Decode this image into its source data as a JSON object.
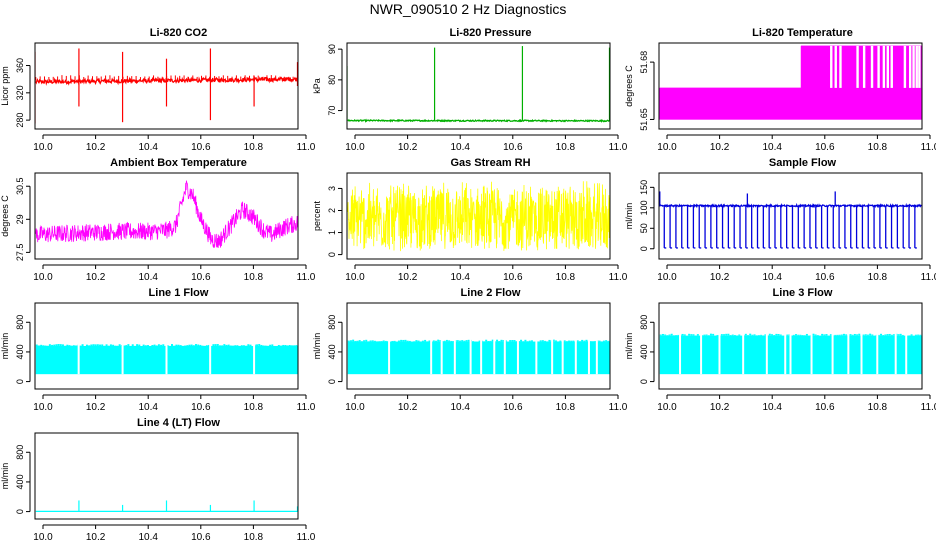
{
  "title": "NWR_090510  2 Hz Diagnostics",
  "colors": {
    "red": "#ff0000",
    "green": "#00b000",
    "magenta": "#ff00ff",
    "yellow": "#ffff00",
    "blue": "#0000dd",
    "cyan": "#00ffff"
  },
  "chart_data": [
    {
      "type": "line",
      "title": "Li-820 CO2",
      "ylabel": "Licor ppm",
      "color": "red",
      "xlim": [
        10.0,
        11.0
      ],
      "xticks": [
        10.0,
        10.2,
        10.4,
        10.6,
        10.8,
        11.0
      ],
      "ylim": [
        267,
        393
      ],
      "yticks": [
        280,
        320,
        360
      ],
      "series": [
        {
          "name": "CO2",
          "baseline": 338,
          "noise": 3,
          "trend": 4,
          "spikes": [
            {
              "x": 10.0,
              "lo": 275,
              "hi": 380
            },
            {
              "x": 10.167,
              "lo": 300,
              "hi": 385
            },
            {
              "x": 10.333,
              "lo": 277,
              "hi": 380
            },
            {
              "x": 10.5,
              "lo": 300,
              "hi": 370
            },
            {
              "x": 10.667,
              "lo": 280,
              "hi": 385
            },
            {
              "x": 10.833,
              "lo": 300,
              "hi": 345
            },
            {
              "x": 10.998,
              "lo": 330,
              "hi": 365
            }
          ]
        }
      ]
    },
    {
      "type": "line",
      "title": "Li-820 Pressure",
      "ylabel": "kPa",
      "color": "green",
      "xlim": [
        10.0,
        11.0
      ],
      "xticks": [
        10.0,
        10.2,
        10.4,
        10.6,
        10.8,
        11.0
      ],
      "ylim": [
        64,
        92
      ],
      "yticks": [
        70,
        80,
        90
      ],
      "series": [
        {
          "name": "Pressure",
          "baseline": 66.7,
          "noise": 0.2,
          "trend": -0.1,
          "spikes": [
            {
              "x": 10.0,
              "lo": 66.5,
              "hi": 84.5
            },
            {
              "x": 10.333,
              "lo": 66.5,
              "hi": 90.5
            },
            {
              "x": 10.667,
              "lo": 66.5,
              "hi": 91
            },
            {
              "x": 10.998,
              "lo": 66.5,
              "hi": 90.5
            }
          ]
        }
      ]
    },
    {
      "type": "area",
      "title": "Li-820 Temperature",
      "ylabel": "degrees C",
      "color": "magenta",
      "xlim": [
        10.0,
        11.0
      ],
      "xticks": [
        10.0,
        10.2,
        10.4,
        10.6,
        10.8,
        11.0
      ],
      "ylim": [
        51.645,
        51.69
      ],
      "yticks": [
        51.65,
        51.68
      ],
      "series": [
        {
          "name": "Temperature",
          "low": 51.65,
          "mid": 51.6665,
          "high": 51.6885,
          "step_x": 10.54,
          "gaps": [
            10.655,
            10.672,
            10.69,
            10.755,
            10.78,
            10.81,
            10.835,
            10.855,
            10.87,
            10.885,
            10.935,
            10.955,
            10.968,
            10.98,
            10.99
          ]
        }
      ]
    },
    {
      "type": "line",
      "title": "Ambient Box Temperature",
      "ylabel": "degrees C",
      "color": "magenta",
      "xlim": [
        10.0,
        11.0
      ],
      "xticks": [
        10.0,
        10.2,
        10.4,
        10.6,
        10.8,
        11.0
      ],
      "ylim": [
        27.2,
        31.1
      ],
      "yticks": [
        27.5,
        29.0,
        30.5
      ],
      "series": [
        {
          "name": "Ambient",
          "x": [
            10.0,
            10.1,
            10.2,
            10.3,
            10.4,
            10.45,
            10.5,
            10.535,
            10.56,
            10.575,
            10.6,
            10.63,
            10.67,
            10.7,
            10.75,
            10.79,
            10.83,
            10.87,
            10.9,
            10.95,
            11.0
          ],
          "y": [
            28.3,
            28.35,
            28.4,
            28.45,
            28.45,
            28.45,
            28.5,
            28.7,
            29.8,
            30.45,
            30.1,
            29.0,
            28.1,
            28.0,
            28.8,
            29.45,
            29.1,
            28.5,
            28.3,
            28.65,
            28.85
          ],
          "band": 0.4
        }
      ]
    },
    {
      "type": "line",
      "title": "Gas Stream RH",
      "ylabel": "percent",
      "color": "yellow",
      "xlim": [
        10.0,
        11.0
      ],
      "xticks": [
        10.0,
        10.2,
        10.4,
        10.6,
        10.8,
        11.0
      ],
      "ylim": [
        -0.2,
        3.7
      ],
      "yticks": [
        0,
        1,
        2,
        3
      ],
      "series": [
        {
          "name": "RH",
          "lo": 0.15,
          "hi": 3.35
        }
      ]
    },
    {
      "type": "line",
      "title": "Sample Flow",
      "ylabel": "ml/min",
      "color": "blue",
      "xlim": [
        10.0,
        11.0
      ],
      "xticks": [
        10.0,
        10.2,
        10.4,
        10.6,
        10.8,
        11.0
      ],
      "ylim": [
        -25,
        185
      ],
      "yticks": [
        0,
        50,
        100,
        150
      ],
      "series": [
        {
          "name": "Sample Flow",
          "baseline": 105,
          "noise": 2,
          "drop_to": 2,
          "n_drops": 44,
          "peaks": [
            {
              "x": 10.0,
              "hi": 140
            },
            {
              "x": 10.333,
              "hi": 135
            },
            {
              "x": 10.667,
              "hi": 140
            }
          ]
        }
      ]
    },
    {
      "type": "area",
      "title": "Line 1 Flow",
      "ylabel": "ml/min",
      "color": "cyan",
      "xlim": [
        10.0,
        11.0
      ],
      "xticks": [
        10.0,
        10.2,
        10.4,
        10.6,
        10.8,
        11.0
      ],
      "ylim": [
        -100,
        1060
      ],
      "yticks": [
        0,
        400,
        800
      ],
      "series": [
        {
          "name": "Line 1",
          "lo": 100,
          "hi": 480,
          "gaps": [
            10.166,
            10.333,
            10.5,
            10.666,
            10.833
          ]
        }
      ]
    },
    {
      "type": "area",
      "title": "Line 2 Flow",
      "ylabel": "ml/min",
      "color": "cyan",
      "xlim": [
        10.0,
        11.0
      ],
      "xticks": [
        10.0,
        10.2,
        10.4,
        10.6,
        10.8,
        11.0
      ],
      "ylim": [
        -100,
        1060
      ],
      "yticks": [
        0,
        400,
        800
      ],
      "series": [
        {
          "name": "Line 2",
          "lo": 100,
          "hi": 540,
          "gaps": [
            10.16,
            10.32,
            10.36,
            10.41,
            10.47,
            10.51,
            10.56,
            10.6,
            10.65,
            10.72,
            10.78,
            10.82,
            10.87,
            10.92,
            10.95
          ]
        }
      ]
    },
    {
      "type": "area",
      "title": "Line 3 Flow",
      "ylabel": "ml/min",
      "color": "cyan",
      "xlim": [
        10.0,
        11.0
      ],
      "xticks": [
        10.0,
        10.2,
        10.4,
        10.6,
        10.8,
        11.0
      ],
      "ylim": [
        -100,
        1060
      ],
      "yticks": [
        0,
        400,
        800
      ],
      "series": [
        {
          "name": "Line 3",
          "lo": 100,
          "hi": 620,
          "gaps": [
            10.08,
            10.16,
            10.23,
            10.32,
            10.41,
            10.48,
            10.5,
            10.58,
            10.66,
            10.72,
            10.77,
            10.83,
            10.9,
            10.94
          ]
        }
      ]
    },
    {
      "type": "line",
      "title": "Line 4 (LT) Flow",
      "ylabel": "ml/min",
      "color": "cyan",
      "xlim": [
        10.0,
        11.0
      ],
      "xticks": [
        10.0,
        10.2,
        10.4,
        10.6,
        10.8,
        11.0
      ],
      "ylim": [
        -100,
        1060
      ],
      "yticks": [
        0,
        400,
        800
      ],
      "series": [
        {
          "name": "Line 4",
          "baseline": 3,
          "spikes": [
            {
              "x": 10.167,
              "hi": 150
            },
            {
              "x": 10.333,
              "hi": 90
            },
            {
              "x": 10.5,
              "hi": 150
            },
            {
              "x": 10.667,
              "hi": 90
            },
            {
              "x": 10.833,
              "hi": 150
            },
            {
              "x": 10.998,
              "hi": 70
            }
          ]
        }
      ]
    }
  ]
}
